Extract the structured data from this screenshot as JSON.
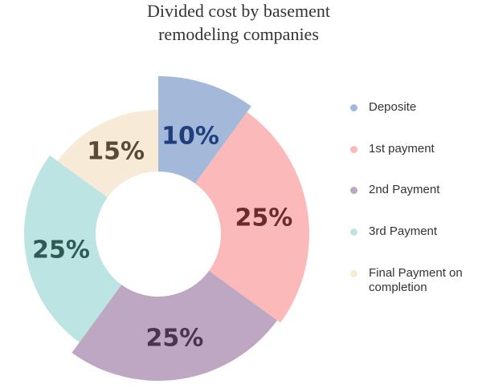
{
  "chart_data": {
    "type": "donut",
    "title": [
      "Divided cost by basement",
      "remodeling companies"
    ],
    "categories": [
      "Deposite",
      "1st payment",
      "2nd Payment",
      "3rd Payment",
      "Final Payment on completion"
    ],
    "values": [
      10,
      25,
      25,
      25,
      15
    ],
    "value_labels": [
      "10%",
      "25%",
      "25%",
      "25%",
      "15%"
    ],
    "colors": [
      "#a4b9da",
      "#fbb9b9",
      "#bda7c2",
      "#bbe4e2",
      "#f7ebd7"
    ],
    "label_colors": [
      "#1f3f7c",
      "#6a2b2e",
      "#4a3450",
      "#2e5a56",
      "#5a4a36"
    ],
    "legend": "right"
  }
}
